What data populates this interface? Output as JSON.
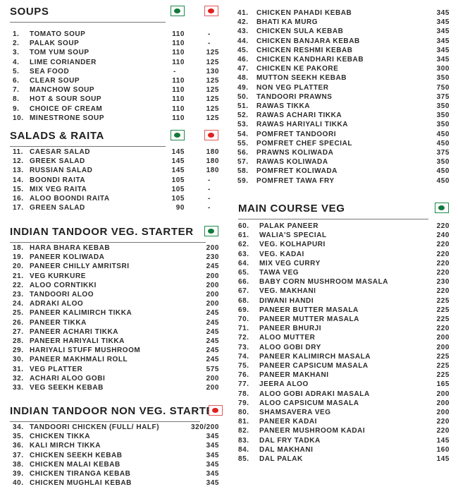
{
  "colors": {
    "veg": "#117a3a",
    "nonveg": "#e02020"
  },
  "sections": [
    {
      "title": "SOUPS",
      "markers": [
        "veg",
        "nonveg"
      ],
      "items": [
        [
          "1.",
          "TOMATO SOUP",
          "110",
          "-"
        ],
        [
          "2.",
          "PALAK SOUP",
          "110",
          "-"
        ],
        [
          "3.",
          "TOM YUM SOUP",
          "110",
          "125"
        ],
        [
          "4.",
          "LIME CORIANDER",
          "110",
          "125"
        ],
        [
          "5.",
          "SEA FOOD",
          "-",
          "130"
        ],
        [
          "6.",
          "CLEAR SOUP",
          "110",
          "125"
        ],
        [
          "7.",
          "MANCHOW SOUP",
          "110",
          "125"
        ],
        [
          "8.",
          "HOT & SOUR SOUP",
          "110",
          "125"
        ],
        [
          "9.",
          "CHOICE OF CREAM",
          "110",
          "125"
        ],
        [
          "10.",
          "MINESTRONE SOUP",
          "110",
          "125"
        ]
      ]
    },
    {
      "title": "SALADS & RAITA",
      "markers": [
        "veg",
        "nonveg"
      ],
      "items": [
        [
          "11.",
          "CAESAR SALAD",
          "145",
          "180"
        ],
        [
          "12.",
          "GREEK SALAD",
          "145",
          "180"
        ],
        [
          "13.",
          "RUSSIAN SALAD",
          "145",
          "180"
        ],
        [
          "14.",
          "BOONDI RAITA",
          "105",
          "-"
        ],
        [
          "15.",
          "MIX VEG RAITA",
          "105",
          "-"
        ],
        [
          "16.",
          "ALOO BOONDI RAITA",
          "105",
          "-"
        ],
        [
          "17.",
          "GREEN SALAD",
          "90",
          "-"
        ]
      ]
    },
    {
      "title": "INDIAN TANDOOR VEG. STARTER",
      "markers": [
        "veg"
      ],
      "items": [
        [
          "18.",
          "HARA BHARA KEBAB",
          "200"
        ],
        [
          "19.",
          "PANEER KOLIWADA",
          "230"
        ],
        [
          "20.",
          "PANEER CHILLY AMRITSRI",
          "245"
        ],
        [
          "21.",
          "VEG KURKURE",
          "200"
        ],
        [
          "22.",
          "ALOO CORNTIKKI",
          "200"
        ],
        [
          "23.",
          "TANDOORI ALOO",
          "200"
        ],
        [
          "24.",
          "ADRAKI ALOO",
          "200"
        ],
        [
          "25.",
          "PANEER KALIMIRCH TIKKA",
          "245"
        ],
        [
          "26.",
          "PANEER TIKKA",
          "245"
        ],
        [
          "27.",
          "PANEER ACHARI TIKKA",
          "245"
        ],
        [
          "28.",
          "PANEER HARIYALI TIKKA",
          "245"
        ],
        [
          "29.",
          "HARIYALI STUFF MUSHROOM",
          "245"
        ],
        [
          "30.",
          "PANEER MAKHMALI ROLL",
          "245"
        ],
        [
          "31.",
          "VEG PLATTER",
          "575"
        ],
        [
          "32.",
          "ACHARI ALOO GOBI",
          "200"
        ],
        [
          "33.",
          "VEG SEEKH KEBAB",
          "200"
        ]
      ]
    },
    {
      "title": "INDIAN TANDOOR NON VEG. STARTER",
      "markers": [
        "nonveg"
      ],
      "items": [
        [
          "34.",
          "TANDOORI CHICKEN (FULL/ HALF)",
          "320/200"
        ],
        [
          "35.",
          "CHICKEN TIKKA",
          "345"
        ],
        [
          "36.",
          "KALI MIRCH TIKKA",
          "345"
        ],
        [
          "37.",
          "CHICKEN SEEKH KEBAB",
          "345"
        ],
        [
          "38.",
          "CHICKEN MALAI KEBAB",
          "345"
        ],
        [
          "39.",
          "CHICKEN TIRANGA KEBAB",
          "345"
        ],
        [
          "40.",
          "CHICKEN MUGHLAI KEBAB",
          "345"
        ]
      ]
    },
    {
      "title": "",
      "markers": [],
      "items": [
        [
          "41.",
          "CHICKEN PAHADI KEBAB",
          "345"
        ],
        [
          "42.",
          "BHATI KA MURG",
          "345"
        ],
        [
          "43.",
          "CHICKEN SULA KEBAB",
          "345"
        ],
        [
          "44.",
          "CHICKEN BANJARA KEBAB",
          "345"
        ],
        [
          "45.",
          "CHICKEN RESHMI KEBAB",
          "345"
        ],
        [
          "46.",
          "CHICKEN KANDHARI KEBAB",
          "345"
        ],
        [
          "47.",
          "CHICKEN KE PAKORE",
          "300"
        ],
        [
          "48.",
          "MUTTON SEEKH KEBAB",
          "350"
        ],
        [
          "49.",
          "NON VEG PLATTER",
          "750"
        ],
        [
          "50.",
          "TANDOORI PRAWNS",
          "375"
        ],
        [
          "51.",
          "RAWAS TIKKA",
          "350"
        ],
        [
          "52.",
          "RAWAS ACHARI TIKKA",
          "350"
        ],
        [
          "53.",
          "RAWAS HARIYALI TIKKA",
          "350"
        ],
        [
          "54.",
          "POMFRET TANDOORI",
          "450"
        ],
        [
          "55.",
          "POMFRET CHEF SPECIAL",
          "450"
        ],
        [
          "56.",
          "PRAWNS KOLIWADA",
          "375"
        ],
        [
          "57.",
          "RAWAS KOLIWADA",
          "350"
        ],
        [
          "58.",
          "POMFRET KOLIWADA",
          "450"
        ],
        [
          "59.",
          "POMFRET TAWA FRY",
          "450"
        ]
      ]
    },
    {
      "title": "MAIN COURSE VEG",
      "markers": [
        "veg"
      ],
      "items": [
        [
          "60.",
          "PALAK PANEER",
          "220"
        ],
        [
          "61.",
          "WALIA'S SPECIAL",
          "240"
        ],
        [
          "62.",
          "VEG. KOLHAPURI",
          "220"
        ],
        [
          "63.",
          "VEG. KADAI",
          "220"
        ],
        [
          "64.",
          "MIX VEG CURRY",
          "220"
        ],
        [
          "65.",
          "TAWA VEG",
          "220"
        ],
        [
          "66.",
          "BABY CORN MUSHROOM MASALA",
          "230"
        ],
        [
          "67.",
          "VEG. MAKHANI",
          "220"
        ],
        [
          "68.",
          "DIWANI HANDI",
          "225"
        ],
        [
          "69.",
          "PANEER BUTTER MASALA",
          "225"
        ],
        [
          "70.",
          "PANEER MUTTER MASALA",
          "225"
        ],
        [
          "71.",
          "PANEER BHURJI",
          "220"
        ],
        [
          "72.",
          "ALOO MUTTER",
          "200"
        ],
        [
          "73.",
          "ALOO GOBI DRY",
          "200"
        ],
        [
          "74.",
          "PANEER KALIMIRCH MASALA",
          "225"
        ],
        [
          "75.",
          "PANEER CAPSICUM MASALA",
          "225"
        ],
        [
          "76.",
          "PANEER MAKHANI",
          "225"
        ],
        [
          "77.",
          "JEERA ALOO",
          "165"
        ],
        [
          "78.",
          "ALOO GOBI ADRAKI MASALA",
          "200"
        ],
        [
          "79.",
          "ALOO CAPSICUM MASALA",
          "200"
        ],
        [
          "80.",
          "SHAMSAVERA VEG",
          "200"
        ],
        [
          "81.",
          "PANEER KADAI",
          "220"
        ],
        [
          "82.",
          "PANEER MUSHROOM KADAI",
          "220"
        ],
        [
          "83.",
          "DAL FRY TADKA",
          "145"
        ],
        [
          "84.",
          "DAL MAKHANI",
          "160"
        ],
        [
          "85.",
          "DAL PALAK",
          "145"
        ]
      ]
    }
  ]
}
